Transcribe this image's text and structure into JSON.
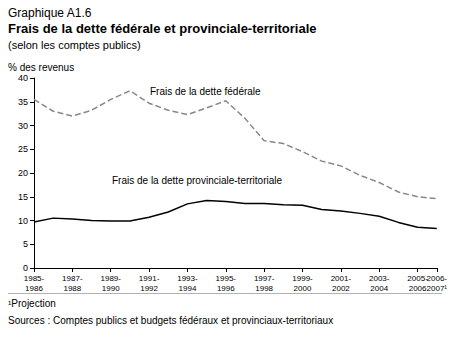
{
  "chart_data": {
    "type": "line",
    "title": "Graphique A1.6",
    "subtitle": [
      "Frais de la dette fédérale et provinciale-territoriale",
      "(selon les comptes publics)"
    ],
    "ylabel": "% des revenus",
    "categories": [
      "1985-1986",
      null,
      "1987-1988",
      null,
      "1989-1990",
      null,
      "1991-1992",
      null,
      "1993-1994",
      null,
      "1995-1996",
      null,
      "1997-1998",
      null,
      "1999-2000",
      null,
      "2001-2002",
      null,
      "2003-2004",
      null,
      "2005-2006",
      "2006-2007¹"
    ],
    "series": [
      {
        "name": "Frais de la dette fédérale",
        "color": "#888888",
        "line_style": "dashed",
        "marker": "none",
        "values": [
          35.5,
          33,
          32,
          33.2,
          35.5,
          37.3,
          34.7,
          33.2,
          32.3,
          33.7,
          35.2,
          31.5,
          26.8,
          26.2,
          24.5,
          22.5,
          21.5,
          19.5,
          18,
          16,
          15,
          14.6
        ]
      },
      {
        "name": "Frais de la dette provinciale-territoriale",
        "color": "#000000",
        "line_style": "solid",
        "marker": "none",
        "values": [
          9.7,
          10.5,
          10.3,
          10,
          9.9,
          9.9,
          10.7,
          11.8,
          13.5,
          14.2,
          14,
          13.6,
          13.6,
          13.3,
          13.2,
          12.3,
          12,
          11.5,
          10.9,
          9.6,
          8.6,
          8.3
        ]
      }
    ],
    "ylim": [
      0,
      40
    ],
    "yticks": [
      0,
      5,
      10,
      15,
      20,
      25,
      30,
      35,
      40
    ],
    "grid": false,
    "legend": false,
    "footnotes": [
      "¹Projection",
      "Sources : Comptes publics et budgets fédéraux et provinciaux-territoriaux"
    ]
  }
}
